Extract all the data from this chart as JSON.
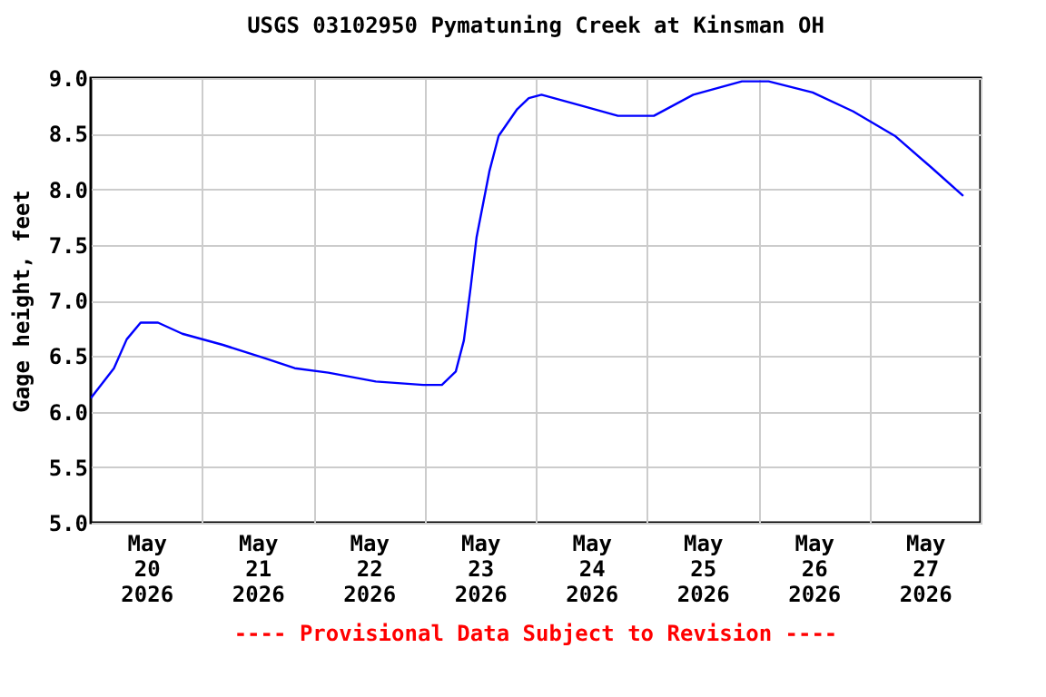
{
  "chart_data": {
    "type": "line",
    "title": "USGS 03102950 Pymatuning Creek at Kinsman OH",
    "ylabel": "Gage height, feet",
    "annotations": [
      "---- Provisional Data Subject to Revision ----"
    ],
    "x": [
      "2026-05-20T00:00",
      "2026-05-20T05:00",
      "2026-05-20T07:45",
      "2026-05-20T10:45",
      "2026-05-20T14:30",
      "2026-05-20T19:45",
      "2026-05-21T04:30",
      "2026-05-21T13:30",
      "2026-05-21T20:00",
      "2026-05-22T03:15",
      "2026-05-22T13:30",
      "2026-05-22T23:45",
      "2026-05-23T03:45",
      "2026-05-23T06:45",
      "2026-05-23T08:30",
      "2026-05-23T10:00",
      "2026-05-23T11:15",
      "2026-05-23T14:00",
      "2026-05-23T16:00",
      "2026-05-23T20:00",
      "2026-05-23T22:30",
      "2026-05-24T01:15",
      "2026-05-24T10:00",
      "2026-05-24T17:45",
      "2026-05-25T01:30",
      "2026-05-25T10:00",
      "2026-05-25T20:30",
      "2026-05-26T02:15",
      "2026-05-26T11:45",
      "2026-05-26T20:30",
      "2026-05-27T05:30",
      "2026-05-27T13:15",
      "2026-05-27T20:15"
    ],
    "series": [
      {
        "color": "#0000ff",
        "values": [
          6.12,
          6.39,
          6.65,
          6.8,
          6.8,
          6.7,
          6.6,
          6.48,
          6.39,
          6.35,
          6.27,
          6.24,
          6.24,
          6.36,
          6.64,
          7.13,
          7.57,
          8.16,
          8.48,
          8.72,
          8.82,
          8.85,
          8.75,
          8.66,
          8.66,
          8.85,
          8.97,
          8.97,
          8.87,
          8.7,
          8.48,
          8.2,
          7.94
        ]
      }
    ],
    "xlim": [
      "2026-05-20T00:00",
      "2026-05-28T00:00"
    ],
    "xticks": [
      {
        "value": "2026-05-20T12:00",
        "label": "May\n20\n2026"
      },
      {
        "value": "2026-05-21T12:00",
        "label": "May\n21\n2026"
      },
      {
        "value": "2026-05-22T12:00",
        "label": "May\n22\n2026"
      },
      {
        "value": "2026-05-23T12:00",
        "label": "May\n23\n2026"
      },
      {
        "value": "2026-05-24T12:00",
        "label": "May\n24\n2026"
      },
      {
        "value": "2026-05-25T12:00",
        "label": "May\n25\n2026"
      },
      {
        "value": "2026-05-26T12:00",
        "label": "May\n26\n2026"
      },
      {
        "value": "2026-05-27T12:00",
        "label": "May\n27\n2026"
      }
    ],
    "ylim": [
      5,
      9
    ],
    "yticks": [
      {
        "value": 5,
        "label": "5.0"
      },
      5.5,
      {
        "value": 6,
        "label": "6.0"
      },
      6.5,
      {
        "value": 7,
        "label": "7.0"
      },
      7.5,
      {
        "value": 8,
        "label": "8.0"
      },
      8.5,
      {
        "value": 9,
        "label": "9.0"
      }
    ],
    "grid": true,
    "legend": false,
    "marker": "none",
    "line_style": "solid"
  }
}
